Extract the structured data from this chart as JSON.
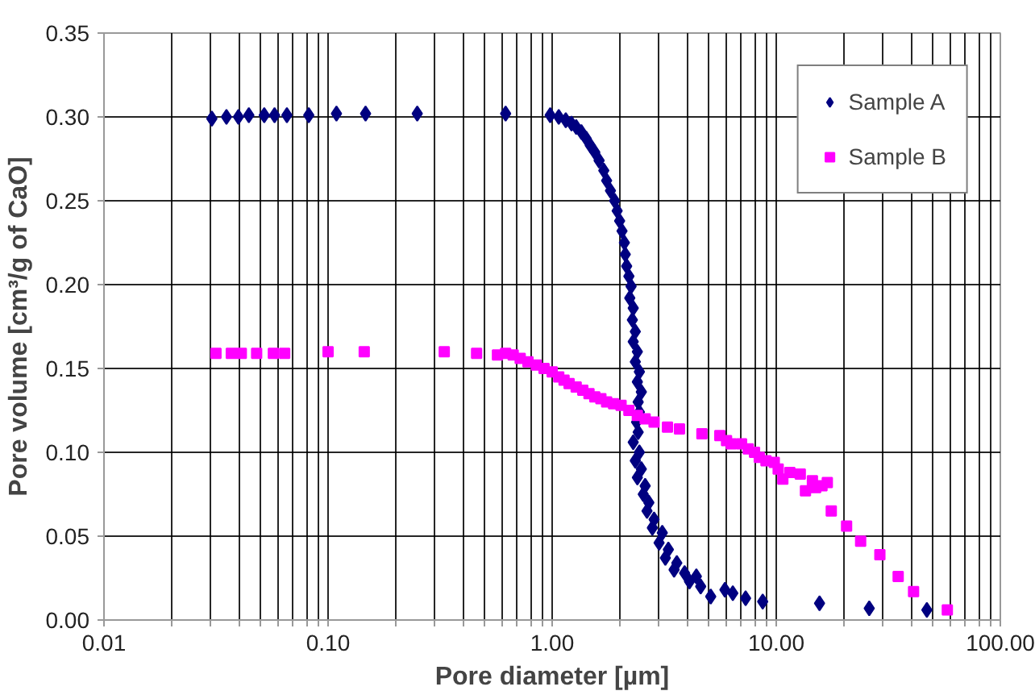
{
  "chart_data": {
    "type": "scatter",
    "xlabel": "Pore diameter [µm]",
    "ylabel": "Pore volume [cm³/g of CaO]",
    "log": "x",
    "xlim": [
      0.01,
      100
    ],
    "xticks": [
      {
        "value": 0.01,
        "label": "0.01"
      },
      {
        "value": 0.02,
        "label": null
      },
      {
        "value": 0.03,
        "label": null
      },
      {
        "value": 0.04,
        "label": null
      },
      {
        "value": 0.05,
        "label": null
      },
      {
        "value": 0.06,
        "label": null
      },
      {
        "value": 0.07,
        "label": null
      },
      {
        "value": 0.08,
        "label": null
      },
      {
        "value": 0.09,
        "label": null
      },
      {
        "value": 0.1,
        "label": "0.10"
      },
      {
        "value": 0.2,
        "label": null
      },
      {
        "value": 0.3,
        "label": null
      },
      {
        "value": 0.4,
        "label": null
      },
      {
        "value": 0.5,
        "label": null
      },
      {
        "value": 0.6,
        "label": null
      },
      {
        "value": 0.7,
        "label": null
      },
      {
        "value": 0.8,
        "label": null
      },
      {
        "value": 0.9,
        "label": null
      },
      {
        "value": 1,
        "label": "1.00"
      },
      {
        "value": 2,
        "label": null
      },
      {
        "value": 3,
        "label": null
      },
      {
        "value": 4,
        "label": null
      },
      {
        "value": 5,
        "label": null
      },
      {
        "value": 6,
        "label": null
      },
      {
        "value": 7,
        "label": null
      },
      {
        "value": 8,
        "label": null
      },
      {
        "value": 9,
        "label": null
      },
      {
        "value": 10,
        "label": "10.00"
      },
      {
        "value": 20,
        "label": null
      },
      {
        "value": 30,
        "label": null
      },
      {
        "value": 40,
        "label": null
      },
      {
        "value": 50,
        "label": null
      },
      {
        "value": 60,
        "label": null
      },
      {
        "value": 70,
        "label": null
      },
      {
        "value": 80,
        "label": null
      },
      {
        "value": 90,
        "label": null
      },
      {
        "value": 100,
        "label": "100.00"
      }
    ],
    "ylim": [
      0,
      0.35
    ],
    "yticks": [
      {
        "value": 0,
        "label": "0.00"
      },
      {
        "value": 0.05,
        "label": "0.05"
      },
      {
        "value": 0.1,
        "label": "0.10"
      },
      {
        "value": 0.15,
        "label": "0.15"
      },
      {
        "value": 0.2,
        "label": "0.20"
      },
      {
        "value": 0.25,
        "label": "0.25"
      },
      {
        "value": 0.3,
        "label": "0.30"
      },
      {
        "value": 0.35,
        "label": "0.35"
      }
    ],
    "grid": true,
    "legend": "top right",
    "series": [
      {
        "name": "Sample A",
        "color": "#000080",
        "marker": "diamond",
        "x": [
          0.0303,
          0.0352,
          0.0398,
          0.0443,
          0.0519,
          0.0577,
          0.0655,
          0.082,
          0.109,
          0.147,
          0.25,
          0.62,
          0.98,
          1.07,
          1.15,
          1.22,
          1.28,
          1.35,
          1.42,
          1.48,
          1.55,
          1.62,
          1.7,
          1.75,
          1.82,
          1.9,
          1.95,
          2.0,
          2.05,
          2.1,
          2.12,
          2.15,
          2.2,
          2.25,
          2.22,
          2.3,
          2.28,
          2.35,
          2.3,
          2.4,
          2.35,
          2.45,
          2.4,
          2.5,
          2.42,
          2.45,
          2.38,
          2.42,
          2.3,
          2.45,
          2.35,
          2.5,
          2.4,
          2.6,
          2.55,
          2.7,
          2.65,
          2.85,
          2.8,
          3.1,
          3.0,
          3.3,
          3.2,
          3.6,
          3.5,
          3.9,
          4.1,
          4.4,
          4.6,
          5.1,
          5.9,
          6.4,
          7.3,
          8.7,
          15.6,
          26,
          47
        ],
        "values": [
          0.299,
          0.3,
          0.3,
          0.301,
          0.301,
          0.301,
          0.301,
          0.301,
          0.302,
          0.302,
          0.302,
          0.302,
          0.301,
          0.3,
          0.298,
          0.296,
          0.294,
          0.291,
          0.287,
          0.283,
          0.279,
          0.274,
          0.268,
          0.262,
          0.256,
          0.25,
          0.244,
          0.238,
          0.232,
          0.225,
          0.218,
          0.211,
          0.205,
          0.199,
          0.192,
          0.186,
          0.179,
          0.172,
          0.166,
          0.16,
          0.154,
          0.148,
          0.142,
          0.136,
          0.13,
          0.124,
          0.118,
          0.112,
          0.106,
          0.1,
          0.095,
          0.09,
          0.085,
          0.08,
          0.075,
          0.07,
          0.065,
          0.06,
          0.055,
          0.052,
          0.046,
          0.042,
          0.037,
          0.034,
          0.03,
          0.028,
          0.023,
          0.026,
          0.02,
          0.014,
          0.018,
          0.016,
          0.013,
          0.011,
          0.01,
          0.007,
          0.006
        ]
      },
      {
        "name": "Sample B",
        "color": "#ff00ff",
        "marker": "square",
        "x": [
          0.0316,
          0.037,
          0.041,
          0.048,
          0.057,
          0.064,
          0.1,
          0.145,
          0.33,
          0.46,
          0.57,
          0.62,
          0.67,
          0.72,
          0.78,
          0.85,
          0.92,
          1.0,
          1.07,
          1.13,
          1.19,
          1.28,
          1.37,
          1.46,
          1.55,
          1.65,
          1.75,
          1.88,
          2.03,
          2.2,
          2.4,
          2.6,
          2.85,
          3.27,
          3.7,
          4.66,
          5.6,
          6.0,
          6.3,
          7.0,
          7.5,
          8.0,
          8.4,
          9.0,
          9.8,
          10.2,
          10.7,
          11.5,
          12.8,
          13.5,
          14.5,
          15,
          16,
          16.9,
          17.6,
          20.6,
          23.8,
          29,
          35,
          41,
          58
        ],
        "values": [
          0.159,
          0.159,
          0.159,
          0.159,
          0.159,
          0.159,
          0.16,
          0.16,
          0.16,
          0.159,
          0.158,
          0.159,
          0.158,
          0.156,
          0.154,
          0.152,
          0.15,
          0.148,
          0.145,
          0.143,
          0.141,
          0.139,
          0.137,
          0.135,
          0.133,
          0.132,
          0.13,
          0.129,
          0.128,
          0.125,
          0.122,
          0.12,
          0.118,
          0.115,
          0.114,
          0.111,
          0.11,
          0.107,
          0.105,
          0.105,
          0.102,
          0.1,
          0.097,
          0.095,
          0.094,
          0.09,
          0.084,
          0.088,
          0.087,
          0.077,
          0.083,
          0.079,
          0.08,
          0.082,
          0.065,
          0.056,
          0.047,
          0.039,
          0.026,
          0.017,
          0.006
        ]
      }
    ]
  }
}
